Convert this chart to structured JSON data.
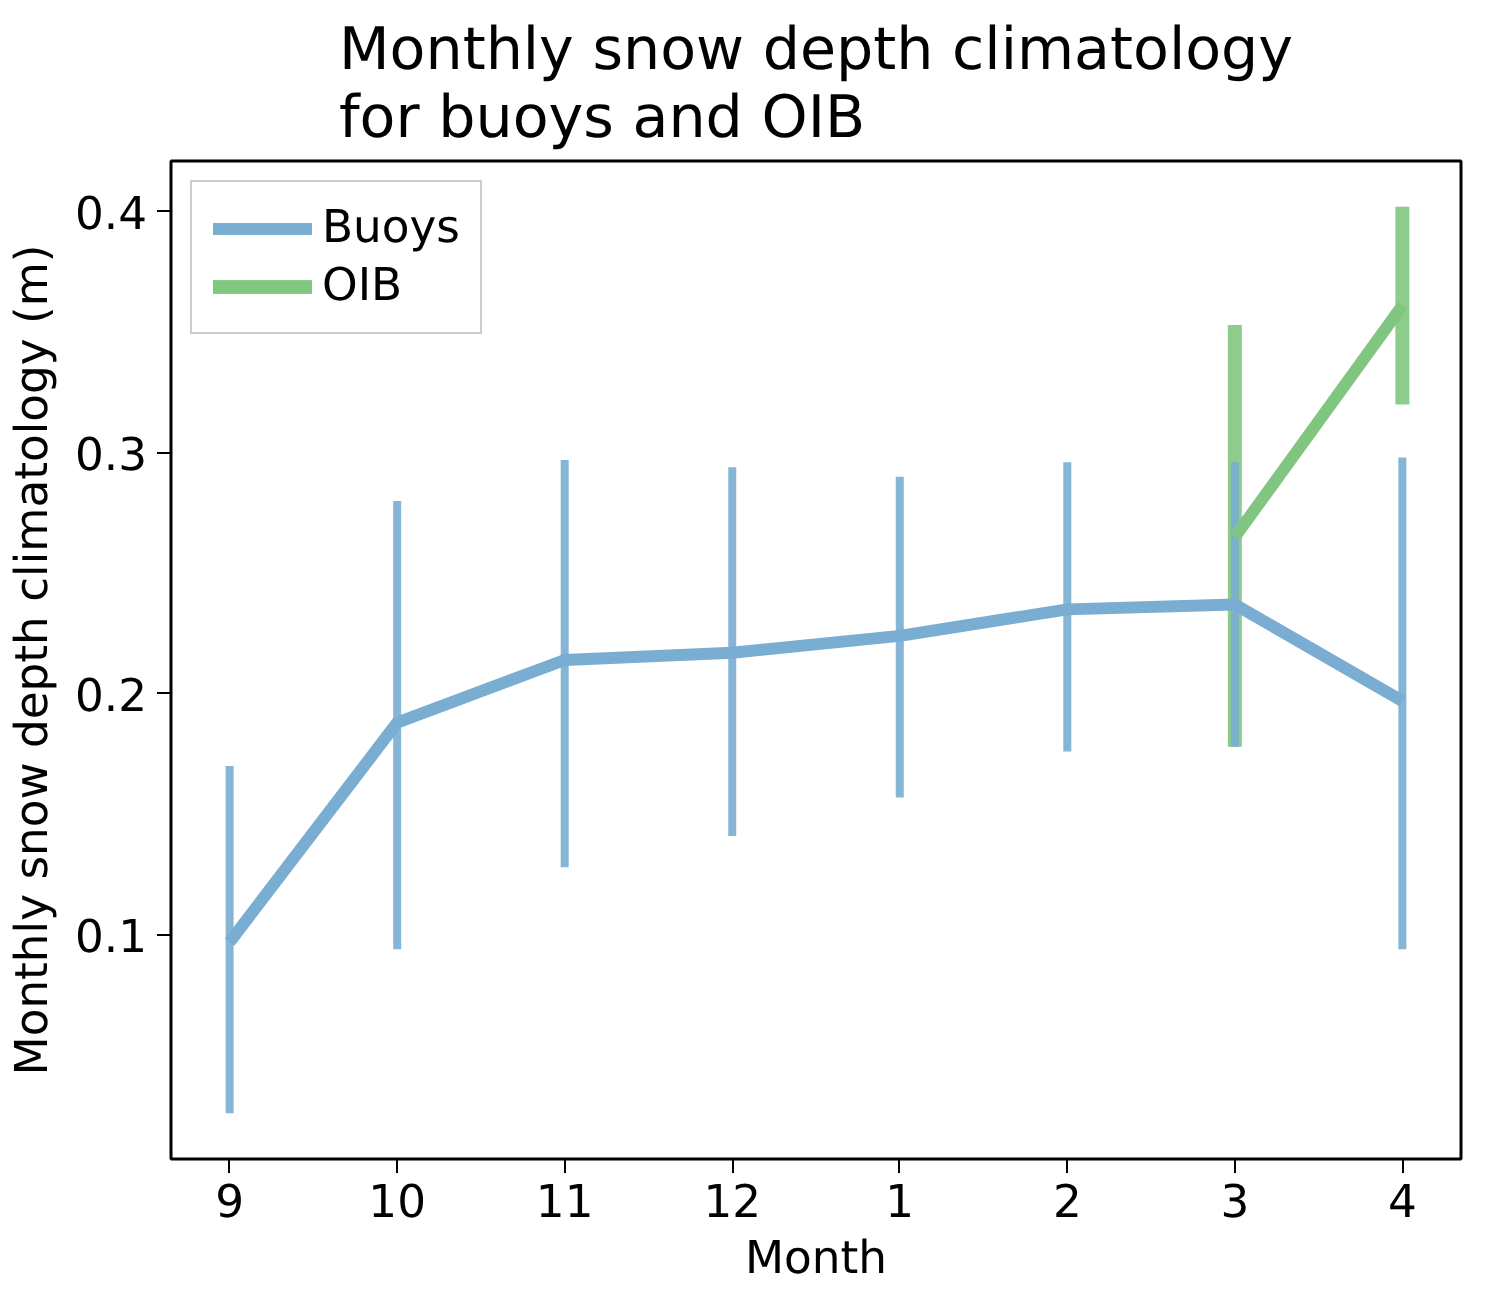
{
  "chart_data": {
    "type": "line",
    "title": "Monthly snow depth climatology\nfor buoys and OIB",
    "xlabel": "Month",
    "ylabel": "Monthly snow depth climatology (m)",
    "categories": [
      "9",
      "10",
      "11",
      "12",
      "1",
      "2",
      "3",
      "4"
    ],
    "series": [
      {
        "name": "Buoys",
        "color": "#79add2",
        "values": [
          0.097,
          0.188,
          0.214,
          0.217,
          0.224,
          0.235,
          0.237,
          0.197
        ],
        "errors": [
          [
            0.026,
            0.17
          ],
          [
            0.094,
            0.28
          ],
          [
            0.128,
            0.297
          ],
          [
            0.141,
            0.294
          ],
          [
            0.157,
            0.29
          ],
          [
            0.176,
            0.296
          ],
          [
            0.178,
            0.296
          ],
          [
            0.094,
            0.298
          ]
        ]
      },
      {
        "name": "OIB",
        "color": "#80c680",
        "values": [
          null,
          null,
          null,
          null,
          null,
          null,
          0.265,
          0.361
        ],
        "errors": [
          null,
          null,
          null,
          null,
          null,
          null,
          [
            0.178,
            0.353
          ],
          [
            0.32,
            0.402
          ]
        ]
      }
    ],
    "ylim": [
      0.007,
      0.421
    ],
    "yticks": [
      0.1,
      0.2,
      0.3,
      0.4
    ],
    "grid": false,
    "legend": "top left",
    "marker": "none",
    "line_style": "solid"
  }
}
